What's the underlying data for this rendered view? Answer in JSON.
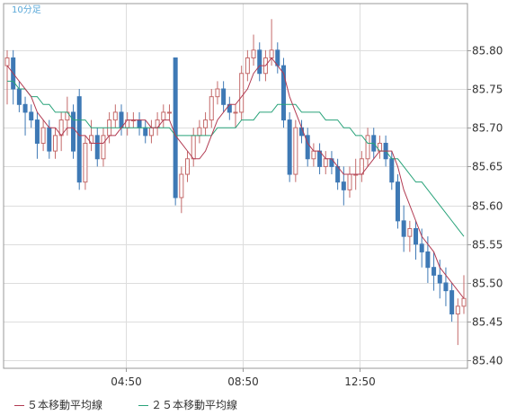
{
  "timeframe_label": "10分足",
  "colors": {
    "up_candle": "#ffffff",
    "down_candle": "#3e79b5",
    "candle_outline": "#c46a6a",
    "ma5_line": "#b23b52",
    "ma25_line": "#29a37a",
    "grid": "#dddddd",
    "axis": "#999999",
    "text": "#333333",
    "title_text": "#5aa8d8"
  },
  "legend": {
    "ma5_label": "５本移動平均線",
    "ma25_label": "２５本移動平均線"
  },
  "chart_data": {
    "type": "candlestick",
    "ylim": [
      85.39,
      85.86
    ],
    "y_ticks": [
      "85.80",
      "85.75",
      "85.70",
      "85.65",
      "85.60",
      "85.55",
      "85.50",
      "85.45",
      "85.40"
    ],
    "x_ticks": [
      "04:50",
      "08:50",
      "12:50"
    ],
    "ohlc": [
      [
        85.78,
        85.8,
        85.73,
        85.79
      ],
      [
        85.79,
        85.8,
        85.73,
        85.75
      ],
      [
        85.75,
        85.76,
        85.72,
        85.73
      ],
      [
        85.73,
        85.74,
        85.69,
        85.72
      ],
      [
        85.72,
        85.73,
        85.7,
        85.71
      ],
      [
        85.71,
        85.72,
        85.66,
        85.68
      ],
      [
        85.68,
        85.71,
        85.67,
        85.7
      ],
      [
        85.7,
        85.71,
        85.66,
        85.67
      ],
      [
        85.67,
        85.7,
        85.66,
        85.69
      ],
      [
        85.69,
        85.72,
        85.67,
        85.71
      ],
      [
        85.71,
        85.74,
        85.69,
        85.72
      ],
      [
        85.72,
        85.73,
        85.66,
        85.67
      ],
      [
        85.74,
        85.75,
        85.62,
        85.63
      ],
      [
        85.63,
        85.69,
        85.62,
        85.68
      ],
      [
        85.68,
        85.71,
        85.67,
        85.69
      ],
      [
        85.69,
        85.7,
        85.65,
        85.66
      ],
      [
        85.66,
        85.7,
        85.65,
        85.69
      ],
      [
        85.69,
        85.72,
        85.68,
        85.71
      ],
      [
        85.71,
        85.73,
        85.7,
        85.72
      ],
      [
        85.72,
        85.73,
        85.69,
        85.7
      ],
      [
        85.7,
        85.72,
        85.69,
        85.71
      ],
      [
        85.71,
        85.72,
        85.7,
        85.71
      ],
      [
        85.71,
        85.72,
        85.69,
        85.7
      ],
      [
        85.7,
        85.71,
        85.68,
        85.69
      ],
      [
        85.69,
        85.71,
        85.68,
        85.7
      ],
      [
        85.7,
        85.72,
        85.69,
        85.71
      ],
      [
        85.71,
        85.73,
        85.7,
        85.72
      ],
      [
        85.72,
        85.73,
        85.71,
        85.72
      ],
      [
        85.79,
        85.79,
        85.6,
        85.61
      ],
      [
        85.61,
        85.65,
        85.59,
        85.64
      ],
      [
        85.64,
        85.67,
        85.63,
        85.66
      ],
      [
        85.66,
        85.7,
        85.65,
        85.69
      ],
      [
        85.69,
        85.71,
        85.68,
        85.7
      ],
      [
        85.7,
        85.72,
        85.69,
        85.71
      ],
      [
        85.71,
        85.75,
        85.7,
        85.74
      ],
      [
        85.74,
        85.76,
        85.73,
        85.75
      ],
      [
        85.75,
        85.76,
        85.72,
        85.73
      ],
      [
        85.73,
        85.74,
        85.71,
        85.72
      ],
      [
        85.72,
        85.73,
        85.7,
        85.72
      ],
      [
        85.72,
        85.78,
        85.71,
        85.77
      ],
      [
        85.77,
        85.8,
        85.76,
        85.79
      ],
      [
        85.79,
        85.82,
        85.78,
        85.8
      ],
      [
        85.8,
        85.81,
        85.76,
        85.77
      ],
      [
        85.77,
        85.8,
        85.76,
        85.79
      ],
      [
        85.79,
        85.84,
        85.78,
        85.8
      ],
      [
        85.8,
        85.81,
        85.77,
        85.78
      ],
      [
        85.78,
        85.79,
        85.7,
        85.71
      ],
      [
        85.71,
        85.72,
        85.63,
        85.64
      ],
      [
        85.64,
        85.71,
        85.63,
        85.7
      ],
      [
        85.7,
        85.71,
        85.68,
        85.69
      ],
      [
        85.69,
        85.7,
        85.65,
        85.66
      ],
      [
        85.66,
        85.68,
        85.65,
        85.67
      ],
      [
        85.67,
        85.68,
        85.64,
        85.65
      ],
      [
        85.65,
        85.67,
        85.64,
        85.66
      ],
      [
        85.66,
        85.67,
        85.64,
        85.65
      ],
      [
        85.65,
        85.66,
        85.62,
        85.63
      ],
      [
        85.63,
        85.65,
        85.6,
        85.62
      ],
      [
        85.62,
        85.65,
        85.61,
        85.64
      ],
      [
        85.64,
        85.66,
        85.62,
        85.64
      ],
      [
        85.64,
        85.67,
        85.63,
        85.66
      ],
      [
        85.66,
        85.7,
        85.65,
        85.69
      ],
      [
        85.69,
        85.7,
        85.66,
        85.67
      ],
      [
        85.67,
        85.69,
        85.66,
        85.68
      ],
      [
        85.68,
        85.69,
        85.65,
        85.66
      ],
      [
        85.66,
        85.67,
        85.62,
        85.63
      ],
      [
        85.63,
        85.64,
        85.57,
        85.58
      ],
      [
        85.58,
        85.6,
        85.54,
        85.56
      ],
      [
        85.56,
        85.58,
        85.54,
        85.57
      ],
      [
        85.57,
        85.58,
        85.53,
        85.55
      ],
      [
        85.55,
        85.57,
        85.52,
        85.54
      ],
      [
        85.54,
        85.56,
        85.5,
        85.52
      ],
      [
        85.52,
        85.54,
        85.49,
        85.51
      ],
      [
        85.51,
        85.53,
        85.48,
        85.5
      ],
      [
        85.5,
        85.52,
        85.47,
        85.49
      ],
      [
        85.49,
        85.5,
        85.45,
        85.46
      ],
      [
        85.46,
        85.48,
        85.42,
        85.47
      ],
      [
        85.47,
        85.51,
        85.46,
        85.48
      ]
    ],
    "ma5": [
      85.78,
      85.77,
      85.76,
      85.75,
      85.74,
      85.72,
      85.71,
      85.7,
      85.7,
      85.69,
      85.7,
      85.7,
      85.69,
      85.69,
      85.68,
      85.68,
      85.68,
      85.69,
      85.69,
      85.7,
      85.71,
      85.71,
      85.71,
      85.71,
      85.7,
      85.7,
      85.71,
      85.71,
      85.69,
      85.68,
      85.67,
      85.66,
      85.66,
      85.67,
      85.69,
      85.71,
      85.72,
      85.73,
      85.73,
      85.74,
      85.75,
      85.77,
      85.78,
      85.78,
      85.79,
      85.78,
      85.77,
      85.74,
      85.72,
      85.7,
      85.68,
      85.67,
      85.67,
      85.66,
      85.66,
      85.65,
      85.64,
      85.64,
      85.64,
      85.64,
      85.65,
      85.66,
      85.67,
      85.67,
      85.67,
      85.65,
      85.62,
      85.6,
      85.58,
      85.56,
      85.55,
      85.54,
      85.52,
      85.51,
      85.5,
      85.49,
      85.48
    ],
    "ma25": [
      85.76,
      85.76,
      85.75,
      85.75,
      85.74,
      85.74,
      85.73,
      85.73,
      85.72,
      85.72,
      85.72,
      85.71,
      85.71,
      85.71,
      85.7,
      85.7,
      85.7,
      85.7,
      85.7,
      85.7,
      85.7,
      85.7,
      85.7,
      85.7,
      85.7,
      85.7,
      85.7,
      85.7,
      85.69,
      85.69,
      85.69,
      85.69,
      85.69,
      85.69,
      85.69,
      85.7,
      85.7,
      85.7,
      85.7,
      85.71,
      85.71,
      85.71,
      85.72,
      85.72,
      85.72,
      85.73,
      85.73,
      85.73,
      85.73,
      85.72,
      85.72,
      85.72,
      85.72,
      85.71,
      85.71,
      85.71,
      85.7,
      85.7,
      85.69,
      85.69,
      85.68,
      85.68,
      85.67,
      85.67,
      85.66,
      85.66,
      85.65,
      85.64,
      85.63,
      85.63,
      85.62,
      85.61,
      85.6,
      85.59,
      85.58,
      85.57,
      85.56
    ]
  }
}
